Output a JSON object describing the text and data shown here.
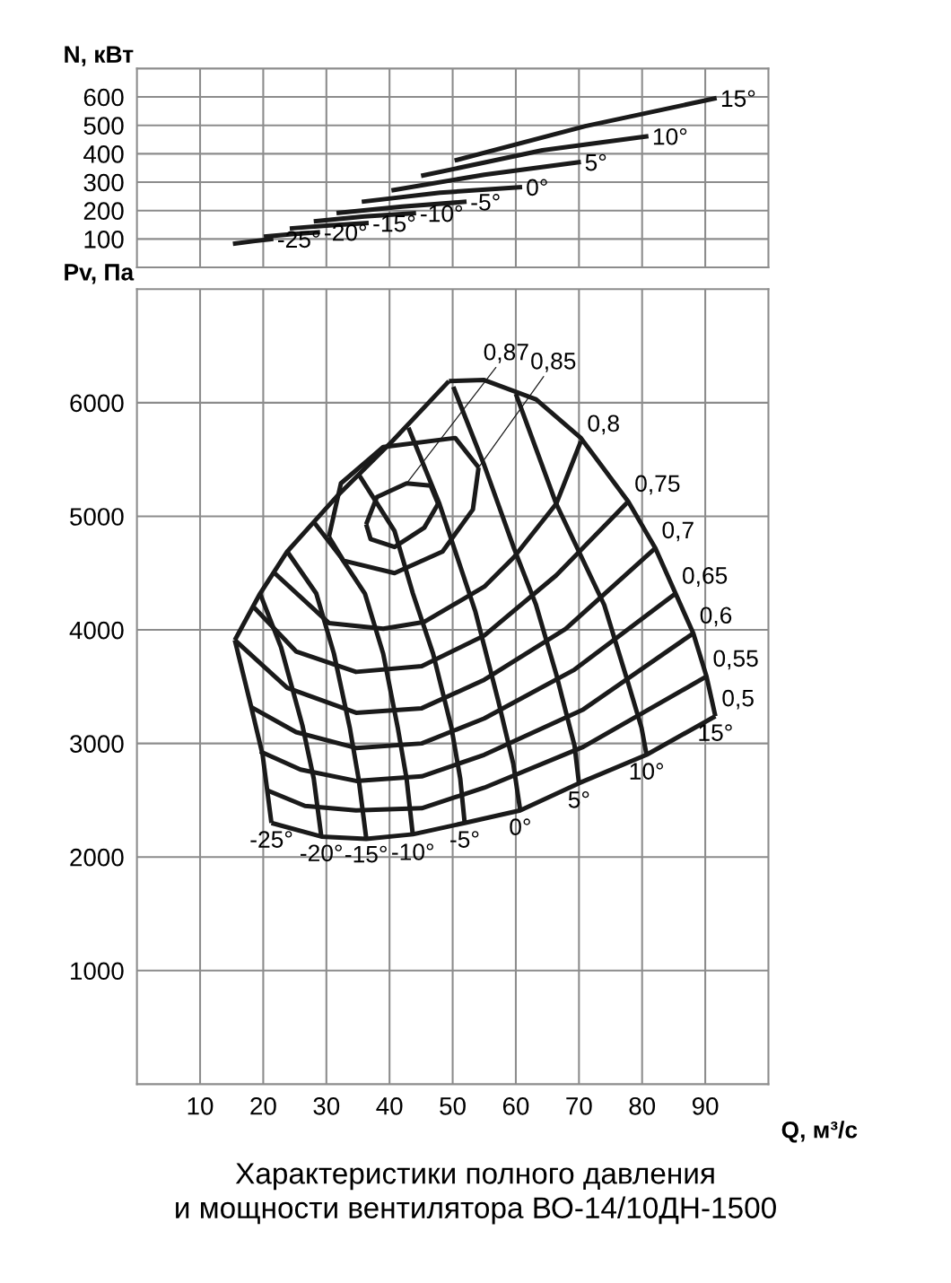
{
  "chart_data": [
    {
      "type": "line",
      "ylabel": "N, кВт",
      "xlim": [
        0,
        100
      ],
      "xticks": [
        10,
        20,
        30,
        40,
        50,
        60,
        70,
        80,
        90
      ],
      "ylim": [
        0,
        700
      ],
      "yticks": [
        100,
        200,
        300,
        400,
        500,
        600
      ],
      "tick_labels": "y",
      "grid": true,
      "legend": false,
      "series": [
        {
          "name": "-25°",
          "color": "#1a1a1a",
          "x": [
            15.2,
            18.4,
            21.6
          ],
          "values": [
            83,
            92,
            100
          ]
        },
        {
          "name": "-20°",
          "color": "#1a1a1a",
          "x": [
            20.1,
            24.5,
            29.0
          ],
          "values": [
            108,
            117,
            124
          ]
        },
        {
          "name": "-15°",
          "color": "#1a1a1a",
          "x": [
            24.2,
            30.5,
            36.7
          ],
          "values": [
            137,
            148,
            156
          ]
        },
        {
          "name": "-10°",
          "color": "#1a1a1a",
          "x": [
            28.0,
            36.0,
            44.2
          ],
          "values": [
            162,
            179,
            191
          ]
        },
        {
          "name": "-5°",
          "color": "#1a1a1a",
          "x": [
            31.6,
            42.0,
            52.2
          ],
          "values": [
            191,
            214,
            231
          ]
        },
        {
          "name": "0°",
          "color": "#1a1a1a",
          "x": [
            35.6,
            48.0,
            61.0
          ],
          "values": [
            231,
            263,
            283
          ]
        },
        {
          "name": "5°",
          "color": "#1a1a1a",
          "x": [
            40.3,
            55.0,
            70.3
          ],
          "values": [
            271,
            326,
            371
          ]
        },
        {
          "name": "10°",
          "color": "#1a1a1a",
          "x": [
            45.0,
            64.2,
            81.0
          ],
          "values": [
            322,
            412,
            462
          ]
        },
        {
          "name": "15°",
          "color": "#1a1a1a",
          "x": [
            50.3,
            71.0,
            91.8
          ],
          "values": [
            376,
            497,
            596
          ]
        }
      ]
    },
    {
      "type": "line",
      "xlabel": "Q, м³/с",
      "ylabel": "Pv, Па",
      "xlim": [
        0,
        100
      ],
      "xticks": [
        10,
        20,
        30,
        40,
        50,
        60,
        70,
        80,
        90
      ],
      "ylim": [
        0,
        7000
      ],
      "yticks": [
        1000,
        2000,
        3000,
        4000,
        5000,
        6000
      ],
      "grid": true,
      "legend": false,
      "annotations": [
        {
          "text": "0,87",
          "x": 42.7,
          "y": 5290
        },
        {
          "text": "0,85",
          "x": 54.1,
          "y": 5430
        },
        "Характеристики полного давления\nи мощности вентилятора ВО-14/10ДН-1500"
      ],
      "series": [
        {
          "color": "#1a1a1a",
          "x": [
            15.5,
            19.5,
            23.8,
            28.0,
            31.9,
            40.4,
            49.4
          ],
          "values": [
            3910,
            4320,
            4690,
            4950,
            5190,
            5660,
            6190
          ]
        },
        {
          "name": "-25°",
          "color": "#1a1a1a",
          "x": [
            15.5,
            18.1,
            19.9,
            21.3
          ],
          "values": [
            3910,
            3320,
            2900,
            2300
          ]
        },
        {
          "name": "-20°",
          "color": "#1a1a1a",
          "x": [
            19.5,
            22.8,
            26.2,
            28.0,
            29.2
          ],
          "values": [
            4320,
            3850,
            3160,
            2690,
            2180
          ]
        },
        {
          "name": "-15°",
          "color": "#1a1a1a",
          "x": [
            23.8,
            28.4,
            31.2,
            33.7,
            35.1,
            36.3
          ],
          "values": [
            4690,
            4320,
            3790,
            3140,
            2690,
            2170
          ]
        },
        {
          "name": "-10°",
          "color": "#1a1a1a",
          "x": [
            28.0,
            32.3,
            36.1,
            39.0,
            41.3,
            42.7,
            43.7
          ],
          "values": [
            4950,
            4640,
            4320,
            3790,
            3140,
            2690,
            2190
          ]
        },
        {
          "name": "-5°",
          "color": "#1a1a1a",
          "x": [
            35.1,
            40.8,
            43.7,
            46.9,
            49.8,
            51.2,
            51.9
          ],
          "values": [
            5370,
            4870,
            4320,
            3790,
            3140,
            2690,
            2300
          ]
        },
        {
          "name": "0°",
          "color": "#1a1a1a",
          "x": [
            43.0,
            47.9,
            53.6,
            57.2,
            59.6,
            60.7
          ],
          "values": [
            5780,
            5110,
            4160,
            3380,
            2820,
            2410
          ]
        },
        {
          "name": "5°",
          "color": "#1a1a1a",
          "x": [
            50.1,
            55.0,
            59.7,
            63.2,
            66.4,
            69.3,
            70.0
          ],
          "values": [
            6140,
            5450,
            4720,
            4220,
            3610,
            2980,
            2650
          ]
        },
        {
          "name": "10°",
          "color": "#1a1a1a",
          "x": [
            60.0,
            66.4,
            74.0,
            77.8,
            79.9,
            80.7
          ],
          "values": [
            6080,
            5110,
            4220,
            3530,
            3140,
            2900
          ]
        },
        {
          "name": "15°",
          "color": "#1a1a1a",
          "x": [
            49.4,
            55.0,
            63.2,
            70.3,
            77.8,
            82.1,
            85.3,
            88.1,
            90.2,
            91.6
          ],
          "values": [
            6190,
            6200,
            6030,
            5690,
            5130,
            4720,
            4320,
            3970,
            3590,
            3240
          ]
        },
        {
          "name": "0,5",
          "color": "#1a1a1a",
          "x": [
            21.3,
            29.2,
            36.3,
            43.7,
            51.9,
            60.7,
            70.0,
            80.7,
            91.6
          ],
          "values": [
            2300,
            2180,
            2160,
            2200,
            2300,
            2410,
            2650,
            2900,
            3240
          ]
        },
        {
          "name": "0,55",
          "color": "#1a1a1a",
          "x": [
            20.5,
            26.6,
            34.7,
            45.1,
            55.0,
            70.7,
            90.2
          ],
          "values": [
            2590,
            2450,
            2410,
            2430,
            2610,
            2970,
            3590
          ]
        },
        {
          "name": "0,6",
          "color": "#1a1a1a",
          "x": [
            19.5,
            25.9,
            34.7,
            45.1,
            55.0,
            70.7,
            88.1
          ],
          "values": [
            2930,
            2770,
            2670,
            2710,
            2900,
            3300,
            3970
          ]
        },
        {
          "name": "0,65",
          "color": "#1a1a1a",
          "x": [
            18.1,
            25.2,
            34.7,
            45.1,
            55.0,
            69.3,
            85.3
          ],
          "values": [
            3320,
            3100,
            2960,
            3000,
            3220,
            3650,
            4320
          ]
        },
        {
          "name": "0,7",
          "color": "#1a1a1a",
          "x": [
            15.5,
            23.8,
            34.7,
            45.1,
            55.0,
            67.9,
            82.1
          ],
          "values": [
            3910,
            3490,
            3270,
            3310,
            3560,
            4010,
            4720
          ]
        },
        {
          "name": "0,75",
          "color": "#1a1a1a",
          "x": [
            18.5,
            25.2,
            34.7,
            45.1,
            55.0,
            66.4,
            77.8
          ],
          "values": [
            4200,
            3810,
            3630,
            3680,
            3950,
            4480,
            5130
          ]
        },
        {
          "name": "0,8",
          "color": "#1a1a1a",
          "x": [
            21.6,
            30.4,
            39.0,
            45.5,
            55.0,
            59.7,
            66.4,
            70.3
          ],
          "values": [
            4510,
            4060,
            4010,
            4070,
            4380,
            4640,
            5110,
            5660
          ]
        },
        {
          "color": "#1a1a1a",
          "x": [
            30.4,
            32.3,
            39.0,
            50.4,
            54.1
          ],
          "values": [
            4820,
            5290,
            5610,
            5690,
            5430
          ]
        },
        {
          "color": "#1a1a1a",
          "x": [
            30.4,
            32.7,
            40.8,
            48.4,
            53.2,
            54.1
          ],
          "values": [
            4820,
            4610,
            4500,
            4690,
            5060,
            5430
          ]
        },
        {
          "color": "#1a1a1a",
          "x": [
            36.3,
            38.0,
            42.7,
            46.5,
            47.7
          ],
          "values": [
            4930,
            5170,
            5290,
            5270,
            5110
          ]
        },
        {
          "color": "#1a1a1a",
          "x": [
            36.3,
            37.0,
            40.8,
            45.5,
            47.7
          ],
          "values": [
            4930,
            4800,
            4730,
            4900,
            5110
          ]
        }
      ]
    }
  ]
}
